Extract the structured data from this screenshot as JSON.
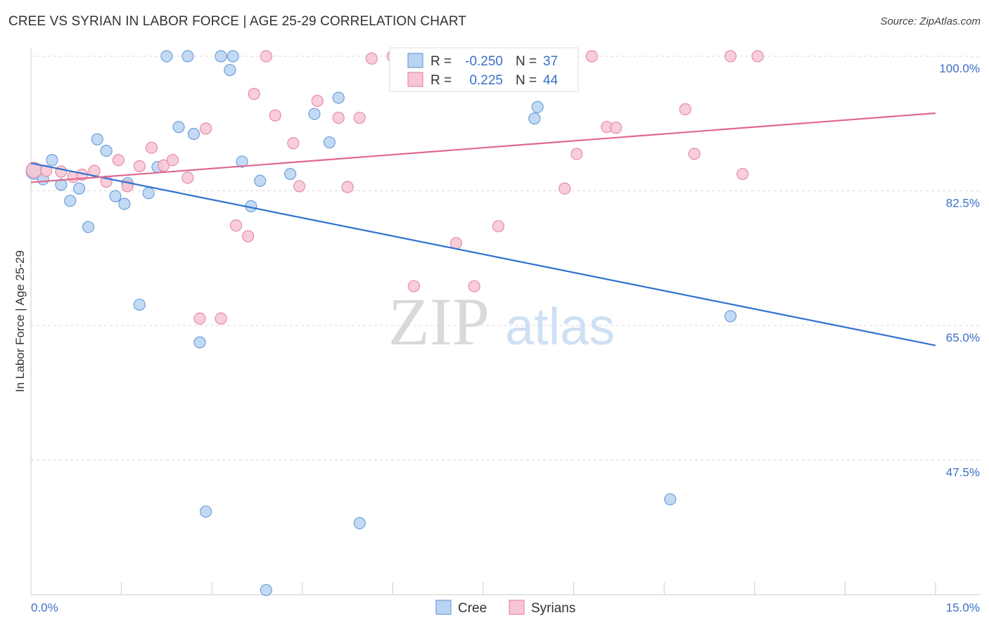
{
  "title": "CREE VS SYRIAN IN LABOR FORCE | AGE 25-29 CORRELATION CHART",
  "source": "Source: ZipAtlas.com",
  "watermark": {
    "zip": "ZIP",
    "atlas": "atlas"
  },
  "colors": {
    "cree_fill": "#b9d3f2",
    "cree_stroke": "#6f9fd8",
    "cree_line": "#2f72d0",
    "syrian_fill": "#f7c5d4",
    "syrian_stroke": "#e88aa6",
    "syrian_line": "#e06892",
    "tick_text": "#3b6fc7",
    "grid": "#d9d9d9"
  },
  "legend": {
    "rows": [
      {
        "r_label": "R =",
        "r_value": "-0.250",
        "n_label": "N =",
        "n_value": "37"
      },
      {
        "r_label": "R =",
        "r_value": "0.225",
        "n_label": "N =",
        "n_value": "44"
      }
    ]
  },
  "bottom_legend": {
    "cree": "Cree",
    "syrians": "Syrians"
  },
  "chart_data": {
    "type": "scatter",
    "title": "CREE VS SYRIAN IN LABOR FORCE | AGE 25-29 CORRELATION CHART",
    "xlabel": "",
    "ylabel": "In Labor Force | Age 25-29",
    "xlim": [
      0,
      15
    ],
    "ylim": [
      30.5,
      101
    ],
    "x_tick_labels": [
      "0.0%",
      "15.0%"
    ],
    "y_ticks": [
      100,
      82.5,
      65,
      47.5
    ],
    "y_tick_labels": [
      "100.0%",
      "82.5%",
      "65.0%",
      "47.5%"
    ],
    "grid": true,
    "series": [
      {
        "name": "Cree",
        "r": -0.25,
        "n": 37,
        "trend": {
          "x": [
            0,
            15
          ],
          "y": [
            86.1,
            62.4
          ]
        },
        "points": [
          [
            0.05,
            85.0
          ],
          [
            0.2,
            84.0
          ],
          [
            0.35,
            86.5
          ],
          [
            0.5,
            83.3
          ],
          [
            0.65,
            81.2
          ],
          [
            0.8,
            82.8
          ],
          [
            0.95,
            77.8
          ],
          [
            1.1,
            89.2
          ],
          [
            1.25,
            87.7
          ],
          [
            1.4,
            81.8
          ],
          [
            1.55,
            80.8
          ],
          [
            1.6,
            83.5
          ],
          [
            1.8,
            67.7
          ],
          [
            1.95,
            82.2
          ],
          [
            2.1,
            85.6
          ],
          [
            2.25,
            100.0
          ],
          [
            2.45,
            90.8
          ],
          [
            2.6,
            100.0
          ],
          [
            2.7,
            89.9
          ],
          [
            2.8,
            62.8
          ],
          [
            2.9,
            40.8
          ],
          [
            3.15,
            100.0
          ],
          [
            3.3,
            98.2
          ],
          [
            3.35,
            100.0
          ],
          [
            3.5,
            86.3
          ],
          [
            3.65,
            80.5
          ],
          [
            3.8,
            83.8
          ],
          [
            3.9,
            30.6
          ],
          [
            4.3,
            84.7
          ],
          [
            4.7,
            92.5
          ],
          [
            4.95,
            88.8
          ],
          [
            5.1,
            94.6
          ],
          [
            5.45,
            39.3
          ],
          [
            8.35,
            91.9
          ],
          [
            8.4,
            93.4
          ],
          [
            10.6,
            42.4
          ],
          [
            11.6,
            66.2
          ]
        ]
      },
      {
        "name": "Syrians",
        "r": 0.225,
        "n": 44,
        "trend": {
          "x": [
            0,
            15
          ],
          "y": [
            83.6,
            92.6
          ]
        },
        "points": [
          [
            0.05,
            85.2
          ],
          [
            0.25,
            85.1
          ],
          [
            0.5,
            85.0
          ],
          [
            0.7,
            84.3
          ],
          [
            0.85,
            84.6
          ],
          [
            1.05,
            85.1
          ],
          [
            1.25,
            83.7
          ],
          [
            1.45,
            86.5
          ],
          [
            1.6,
            83.1
          ],
          [
            1.8,
            85.7
          ],
          [
            2.0,
            88.1
          ],
          [
            2.2,
            85.8
          ],
          [
            2.35,
            86.5
          ],
          [
            2.6,
            84.2
          ],
          [
            2.8,
            65.9
          ],
          [
            2.9,
            90.6
          ],
          [
            3.15,
            65.9
          ],
          [
            3.4,
            78.0
          ],
          [
            3.6,
            76.6
          ],
          [
            3.7,
            95.1
          ],
          [
            3.9,
            100.0
          ],
          [
            4.05,
            92.3
          ],
          [
            4.35,
            88.7
          ],
          [
            4.45,
            83.1
          ],
          [
            4.75,
            94.2
          ],
          [
            5.1,
            92.0
          ],
          [
            5.25,
            83.0
          ],
          [
            5.45,
            92.0
          ],
          [
            5.65,
            99.7
          ],
          [
            6.0,
            100.0
          ],
          [
            6.35,
            70.1
          ],
          [
            7.05,
            75.7
          ],
          [
            7.35,
            70.1
          ],
          [
            7.75,
            77.9
          ],
          [
            8.85,
            82.8
          ],
          [
            9.05,
            87.3
          ],
          [
            9.3,
            100.0
          ],
          [
            9.55,
            90.8
          ],
          [
            9.7,
            90.7
          ],
          [
            10.85,
            93.1
          ],
          [
            11.0,
            87.3
          ],
          [
            11.6,
            100.0
          ],
          [
            11.8,
            84.7
          ],
          [
            12.05,
            100.0
          ]
        ]
      }
    ]
  }
}
